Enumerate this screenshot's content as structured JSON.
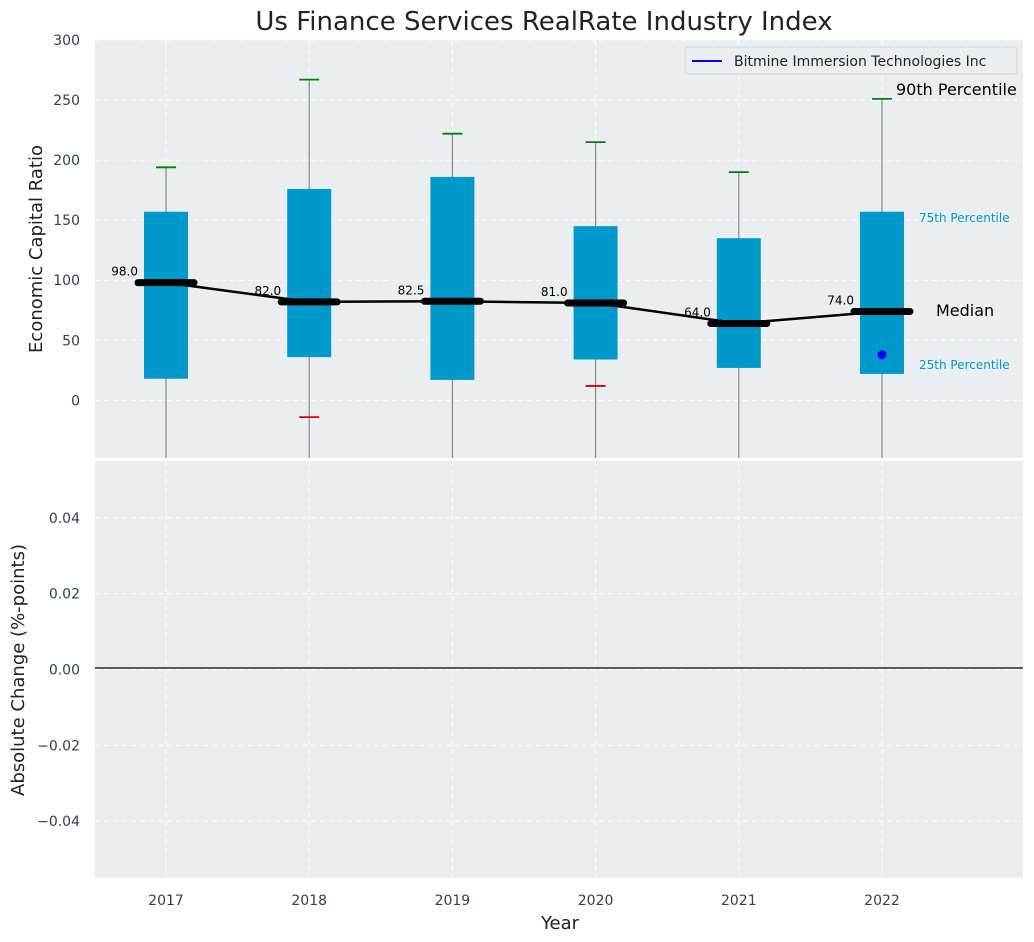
{
  "chart_data": [
    {
      "type": "box",
      "title": "Us Finance Services RealRate Industry Index",
      "ylabel": "Economic Capital Ratio",
      "xlabel": "",
      "ylim": [
        -48,
        300
      ],
      "yticks": [
        0,
        50,
        100,
        150,
        200,
        250,
        300
      ],
      "grid": true,
      "categories": [
        "2017",
        "2018",
        "2019",
        "2020",
        "2021",
        "2022"
      ],
      "boxes": [
        {
          "year": "2017",
          "q1": 18,
          "q3": 157,
          "median": 98.0,
          "p90": 194,
          "p10": null
        },
        {
          "year": "2018",
          "q1": 36,
          "q3": 176,
          "median": 82.0,
          "p90": 267,
          "p10": -14
        },
        {
          "year": "2019",
          "q1": 17,
          "q3": 186,
          "median": 82.5,
          "p90": 222,
          "p10": null
        },
        {
          "year": "2020",
          "q1": 34,
          "q3": 145,
          "median": 81.0,
          "p90": 215,
          "p10": 12
        },
        {
          "year": "2021",
          "q1": 27,
          "q3": 135,
          "median": 64.0,
          "p90": 190,
          "p10": null
        },
        {
          "year": "2022",
          "q1": 22,
          "q3": 157,
          "median": 74.0,
          "p90": 251,
          "p10": null
        }
      ],
      "median_labels": [
        "98.0",
        "82.0",
        "82.5",
        "81.0",
        "64.0",
        "74.0"
      ],
      "series": [
        {
          "name": "Bitmine Immersion Technologies Inc",
          "points": [
            {
              "x": "2022",
              "y": 38
            }
          ]
        }
      ],
      "legend": {
        "placement": "top-right",
        "entries": [
          "Bitmine Immersion Technologies Inc"
        ]
      },
      "annotations": {
        "p90": "90th Percentile",
        "p75": "75th Percentile",
        "median": "Median",
        "p25": "25th Percentile"
      },
      "colors": {
        "box": "#0099cc",
        "median_line": "#000000",
        "whisker_high": "#008000",
        "whisker_low": "#e00000",
        "company": "#0000ff",
        "background": "#eaeef0"
      }
    },
    {
      "type": "line",
      "ylabel": "Absolute Change (%-points)",
      "xlabel": "Year",
      "ylim": [
        -0.055,
        0.055
      ],
      "yticks": [
        "0.04",
        "0.02",
        "0.00",
        "−0.02",
        "−0.04"
      ],
      "ytick_values": [
        0.04,
        0.02,
        0.0,
        -0.02,
        -0.04
      ],
      "categories": [
        "2017",
        "2018",
        "2019",
        "2020",
        "2021",
        "2022"
      ],
      "grid": true
    }
  ]
}
